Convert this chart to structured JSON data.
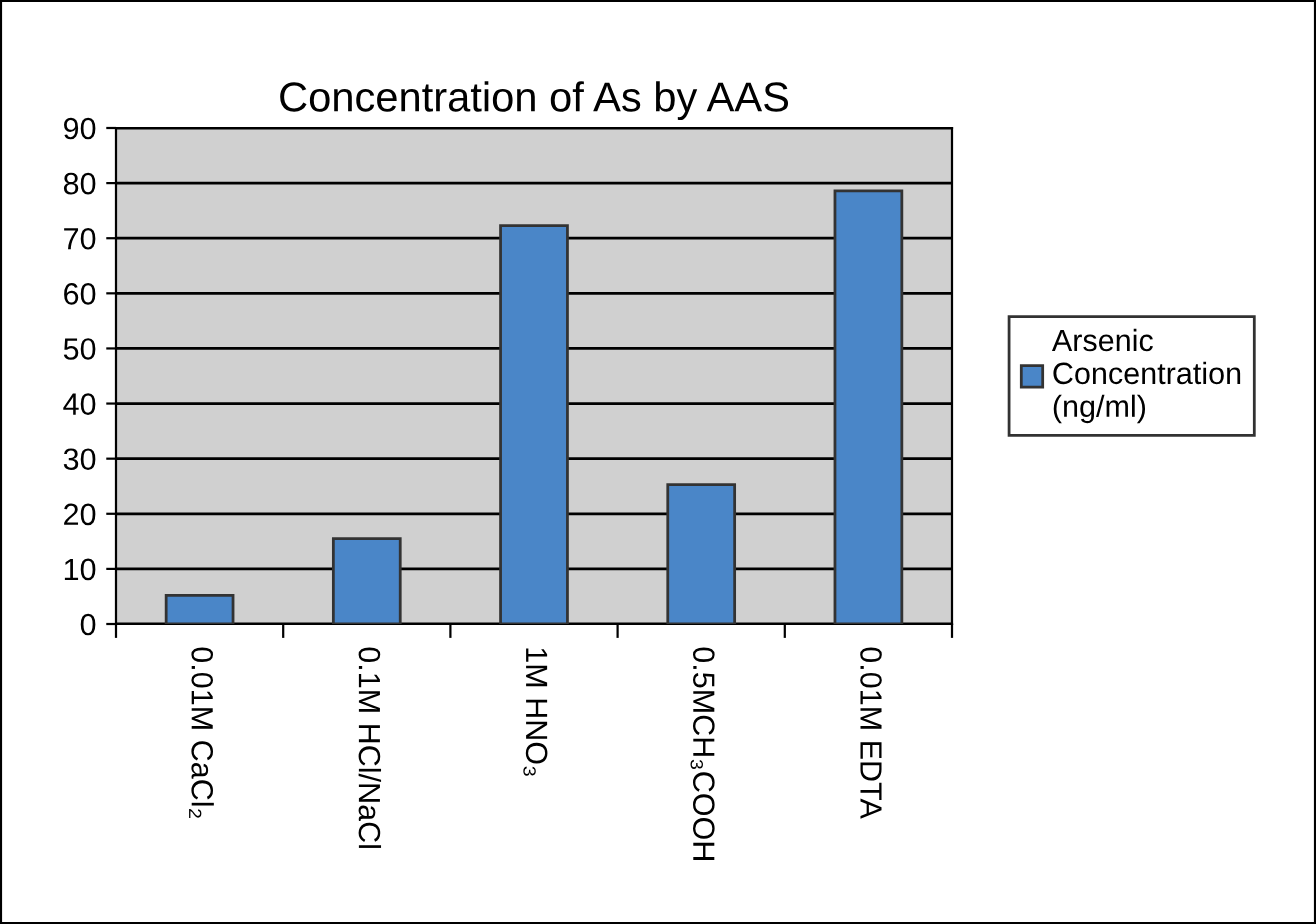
{
  "chart_data": {
    "type": "bar",
    "title": "Concentration of As by AAS",
    "categories": [
      "0.01M CaCl₂",
      "0.1M HCl/NaCl",
      "1M HNO₃",
      "0.5MCH₃COOH",
      "0.01M EDTA"
    ],
    "series": [
      {
        "name": "Arsenic\nConcentration\n(ng/ml)",
        "color": "#4a86c8",
        "values": [
          5.2,
          15.5,
          72.3,
          25.3,
          78.6
        ]
      }
    ],
    "ylim": [
      0,
      90
    ],
    "yticks": [
      0,
      10,
      20,
      30,
      40,
      50,
      60,
      70,
      80,
      90
    ],
    "grid": "y",
    "legend": "right"
  }
}
